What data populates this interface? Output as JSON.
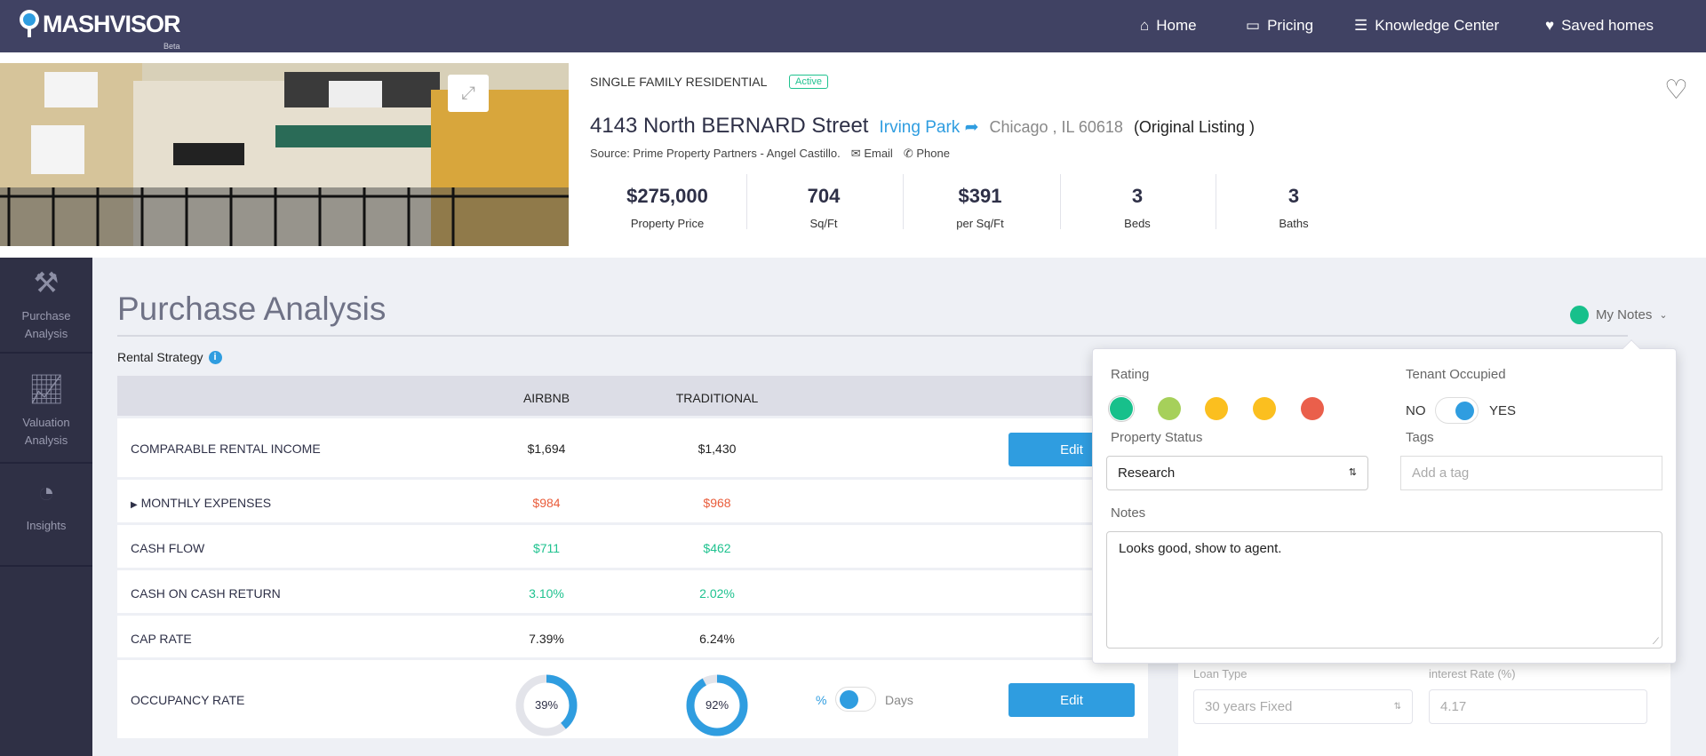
{
  "nav": {
    "brand": "MASHVISOR",
    "brand_sub": "Beta",
    "items": [
      {
        "label": "Home",
        "icon": "home-icon"
      },
      {
        "label": "Pricing",
        "icon": "pricing-icon"
      },
      {
        "label": "Knowledge Center",
        "icon": "list-icon"
      },
      {
        "label": "Saved homes",
        "icon": "heart-icon"
      }
    ]
  },
  "listing": {
    "type": "SINGLE FAMILY RESIDENTIAL",
    "status": "Active",
    "address": "4143 North BERNARD Street",
    "neighborhood": "Irving Park",
    "city": "Chicago , IL 60618",
    "original": "(Original Listing )",
    "source": "Source: Prime Property Partners - Angel Castillo.",
    "email": "Email",
    "phone": "Phone",
    "stats": [
      {
        "value": "$275,000",
        "label": "Property Price"
      },
      {
        "value": "704",
        "label": "Sq/Ft"
      },
      {
        "value": "$391",
        "label": "per Sq/Ft"
      },
      {
        "value": "3",
        "label": "Beds"
      },
      {
        "value": "3",
        "label": "Baths"
      }
    ]
  },
  "sidebar": [
    {
      "label1": "Purchase",
      "label2": "Analysis"
    },
    {
      "label1": "Valuation",
      "label2": "Analysis"
    },
    {
      "label1": "Insights",
      "label2": ""
    }
  ],
  "main": {
    "title": "Purchase Analysis",
    "rental_strategy": "Rental Strategy",
    "my_notes": "My Notes",
    "col_airbnb": "AIRBNB",
    "col_traditional": "TRADITIONAL",
    "edit": "Edit",
    "rows": [
      {
        "label": "COMPARABLE RENTAL INCOME",
        "airbnb": "$1,694",
        "traditional": "$1,430"
      },
      {
        "label": "MONTHLY EXPENSES",
        "airbnb": "$984",
        "traditional": "$968"
      },
      {
        "label": "CASH FLOW",
        "airbnb": "$711",
        "traditional": "$462"
      },
      {
        "label": "CASH ON CASH RETURN",
        "airbnb": "3.10%",
        "traditional": "2.02%"
      },
      {
        "label": "CAP RATE",
        "airbnb": "7.39%",
        "traditional": "6.24%"
      }
    ],
    "occupancy": {
      "label": "OCCUPANCY RATE",
      "airbnb": "39%",
      "traditional": "92%",
      "airbnb_value": 39,
      "traditional_value": 92,
      "pct": "%",
      "days": "Days"
    },
    "loan": {
      "type_label": "Loan Type",
      "type_value": "30 years Fixed",
      "rate_label": "interest Rate (%)",
      "rate_value": "4.17"
    }
  },
  "notes": {
    "rating_label": "Rating",
    "rating_colors": [
      "#17c08b",
      "#a6d05a",
      "#fbbf1f",
      "#fbbf1f",
      "#ea5f4b"
    ],
    "tenant_label": "Tenant Occupied",
    "no": "NO",
    "yes": "YES",
    "status_label": "Property Status",
    "status_value": "Research",
    "tags_label": "Tags",
    "tags_placeholder": "Add a tag",
    "notes_label": "Notes",
    "notes_value": "Looks good, show to agent."
  }
}
